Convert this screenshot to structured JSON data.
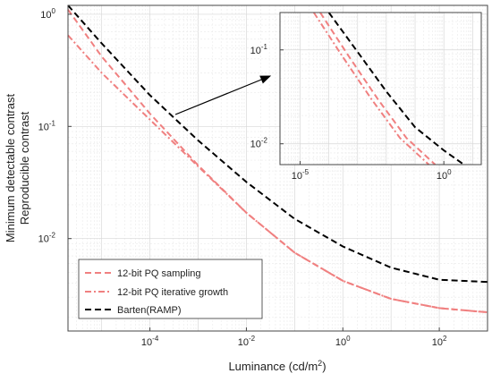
{
  "chart_data": [
    {
      "type": "line",
      "title": "",
      "xlabel": "Luminance (cd/m²)",
      "ylabel": [
        "Minimum detectable contrast",
        "Reproducible contrast"
      ],
      "xscale": "log",
      "yscale": "log",
      "xlim": [
        2e-06,
        1000
      ],
      "ylim": [
        0.0015,
        1.2
      ],
      "grid": true,
      "legend_position": "bottom-left",
      "x_ticks": [
        {
          "value": 0.0001,
          "base": "10",
          "exp": "-4"
        },
        {
          "value": 0.01,
          "base": "10",
          "exp": "-2"
        },
        {
          "value": 1,
          "base": "10",
          "exp": "0"
        },
        {
          "value": 100,
          "base": "10",
          "exp": "2"
        }
      ],
      "y_ticks": [
        {
          "value": 0.01,
          "base": "10",
          "exp": "-2"
        },
        {
          "value": 0.1,
          "base": "10",
          "exp": "-1"
        },
        {
          "value": 1,
          "base": "10",
          "exp": "0"
        }
      ],
      "series": [
        {
          "name": "12-bit PQ sampling",
          "style": "dashed",
          "color": "#f08080",
          "x": [
            2e-06,
            1e-05,
            0.0001,
            0.001,
            0.01,
            0.1,
            1,
            10,
            100,
            1000
          ],
          "y": [
            1.1,
            0.42,
            0.13,
            0.045,
            0.017,
            0.0075,
            0.0042,
            0.0029,
            0.0024,
            0.0022
          ]
        },
        {
          "name": "12-bit PQ iterative growth",
          "style": "dashdot",
          "color": "#f08080",
          "x": [
            2e-06,
            1e-05,
            0.0001,
            0.001,
            0.01,
            0.1,
            1,
            10,
            100,
            1000
          ],
          "y": [
            0.65,
            0.3,
            0.115,
            0.044,
            0.017,
            0.0075,
            0.0042,
            0.0029,
            0.0024,
            0.0022
          ]
        },
        {
          "name": "Barten(RAMP)",
          "style": "dashed",
          "color": "#000000",
          "x": [
            2e-06,
            1e-05,
            0.0001,
            0.001,
            0.01,
            0.1,
            1,
            10,
            100,
            1000
          ],
          "y": [
            1.2,
            0.55,
            0.19,
            0.075,
            0.032,
            0.015,
            0.0085,
            0.0055,
            0.0043,
            0.0041
          ]
        }
      ]
    },
    {
      "type": "line",
      "role": "inset",
      "xscale": "log",
      "yscale": "log",
      "xlim": [
        2e-06,
        20
      ],
      "ylim": [
        0.006,
        0.25
      ],
      "grid": true,
      "x_ticks": [
        {
          "value": 1e-05,
          "base": "10",
          "exp": "-5"
        },
        {
          "value": 1,
          "base": "10",
          "exp": "0"
        }
      ],
      "y_ticks": [
        {
          "value": 0.01,
          "base": "10",
          "exp": "-2"
        },
        {
          "value": 0.1,
          "base": "10",
          "exp": "-1"
        }
      ],
      "series": [
        {
          "name": "12-bit PQ sampling",
          "style": "dashed",
          "color": "#f08080",
          "x": [
            5e-05,
            0.0005,
            0.005,
            0.05,
            0.5
          ],
          "y": [
            0.25,
            0.085,
            0.03,
            0.0115,
            0.006
          ]
        },
        {
          "name": "12-bit PQ iterative growth",
          "style": "dashdot",
          "color": "#f08080",
          "x": [
            3e-05,
            0.0003,
            0.003,
            0.03,
            0.3
          ],
          "y": [
            0.25,
            0.085,
            0.03,
            0.0115,
            0.006
          ]
        },
        {
          "name": "Barten(RAMP)",
          "style": "dashed",
          "color": "#000000",
          "x": [
            0.0001,
            0.001,
            0.01,
            0.1,
            1,
            5
          ],
          "y": [
            0.25,
            0.095,
            0.036,
            0.015,
            0.0085,
            0.006
          ]
        }
      ]
    }
  ]
}
